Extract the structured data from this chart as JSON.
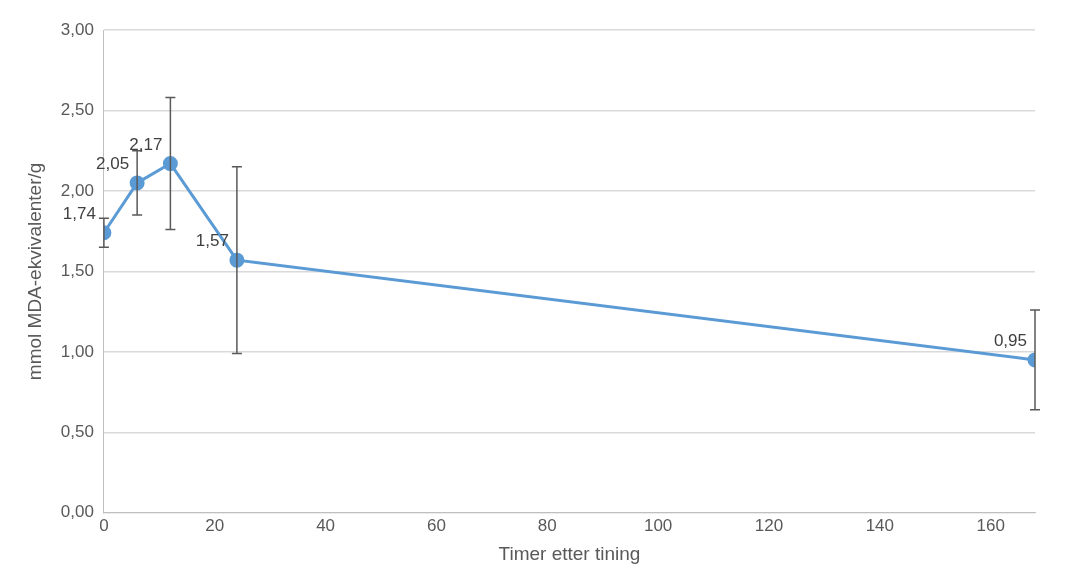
{
  "chart_data": {
    "type": "line",
    "xlabel": "Timer etter tining",
    "ylabel": "mmol MDA-ekvivalenter/g",
    "x": [
      0,
      6,
      12,
      24,
      168
    ],
    "series": [
      {
        "color": "#5b9bd5",
        "values": [
          1.74,
          2.05,
          2.17,
          1.57,
          0.95
        ],
        "errors": [
          0.09,
          0.2,
          0.41,
          0.58,
          0.31
        ],
        "value_labels": [
          "1,74",
          "2,05",
          "2,17",
          "1,57",
          "0,95"
        ]
      }
    ],
    "xlim": [
      0,
      168
    ],
    "xticks": [
      0,
      20,
      40,
      60,
      80,
      100,
      120,
      140,
      160
    ],
    "ylim": [
      0,
      3
    ],
    "yticks": [
      {
        "value": 0,
        "label": "0,00"
      },
      {
        "value": 0.5,
        "label": "0,50"
      },
      {
        "value": 1,
        "label": "1,00"
      },
      {
        "value": 1.5,
        "label": "1,50"
      },
      {
        "value": 2,
        "label": "2,00"
      },
      {
        "value": 2.5,
        "label": "2,50"
      },
      {
        "value": 3,
        "label": "3,00"
      }
    ],
    "grid": "y",
    "marker": "circle",
    "line_style": "solid",
    "legend": false
  }
}
